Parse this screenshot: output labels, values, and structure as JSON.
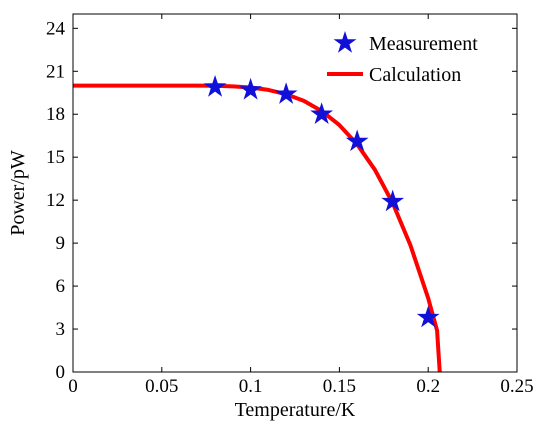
{
  "chart_data": {
    "type": "scatter",
    "xlabel": "Temperature/K",
    "ylabel": "Power/pW",
    "xlim": [
      0,
      0.25
    ],
    "ylim": [
      0,
      25
    ],
    "x_ticks": [
      0,
      0.05,
      0.1,
      0.15,
      0.2,
      0.25
    ],
    "x_tick_labels": [
      "0",
      "0.05",
      "0.1",
      "0.15",
      "0.2",
      "0.25"
    ],
    "y_ticks": [
      0,
      3,
      6,
      9,
      12,
      15,
      18,
      21,
      24
    ],
    "y_tick_labels": [
      "0",
      "3",
      "6",
      "9",
      "12",
      "15",
      "18",
      "21",
      "24"
    ],
    "grid": false,
    "legend_position": "top-right",
    "series": [
      {
        "name": "Measurement",
        "kind": "markers",
        "marker": "star",
        "color": "#1010d8",
        "x": [
          0.08,
          0.1,
          0.12,
          0.14,
          0.16,
          0.18,
          0.2
        ],
        "y": [
          19.9,
          19.7,
          19.4,
          18.0,
          16.1,
          11.9,
          3.8
        ]
      },
      {
        "name": "Calculation",
        "kind": "line",
        "color": "#ff0000",
        "x": [
          0,
          0.02,
          0.04,
          0.06,
          0.07,
          0.08,
          0.09,
          0.1,
          0.11,
          0.12,
          0.13,
          0.14,
          0.15,
          0.16,
          0.17,
          0.18,
          0.19,
          0.2,
          0.205,
          0.2065
        ],
        "y": [
          20.0,
          20.0,
          20.0,
          20.0,
          20.0,
          19.99,
          19.95,
          19.87,
          19.7,
          19.4,
          18.93,
          18.23,
          17.24,
          15.9,
          14.12,
          11.8,
          8.85,
          5.15,
          2.9,
          0
        ]
      }
    ]
  }
}
